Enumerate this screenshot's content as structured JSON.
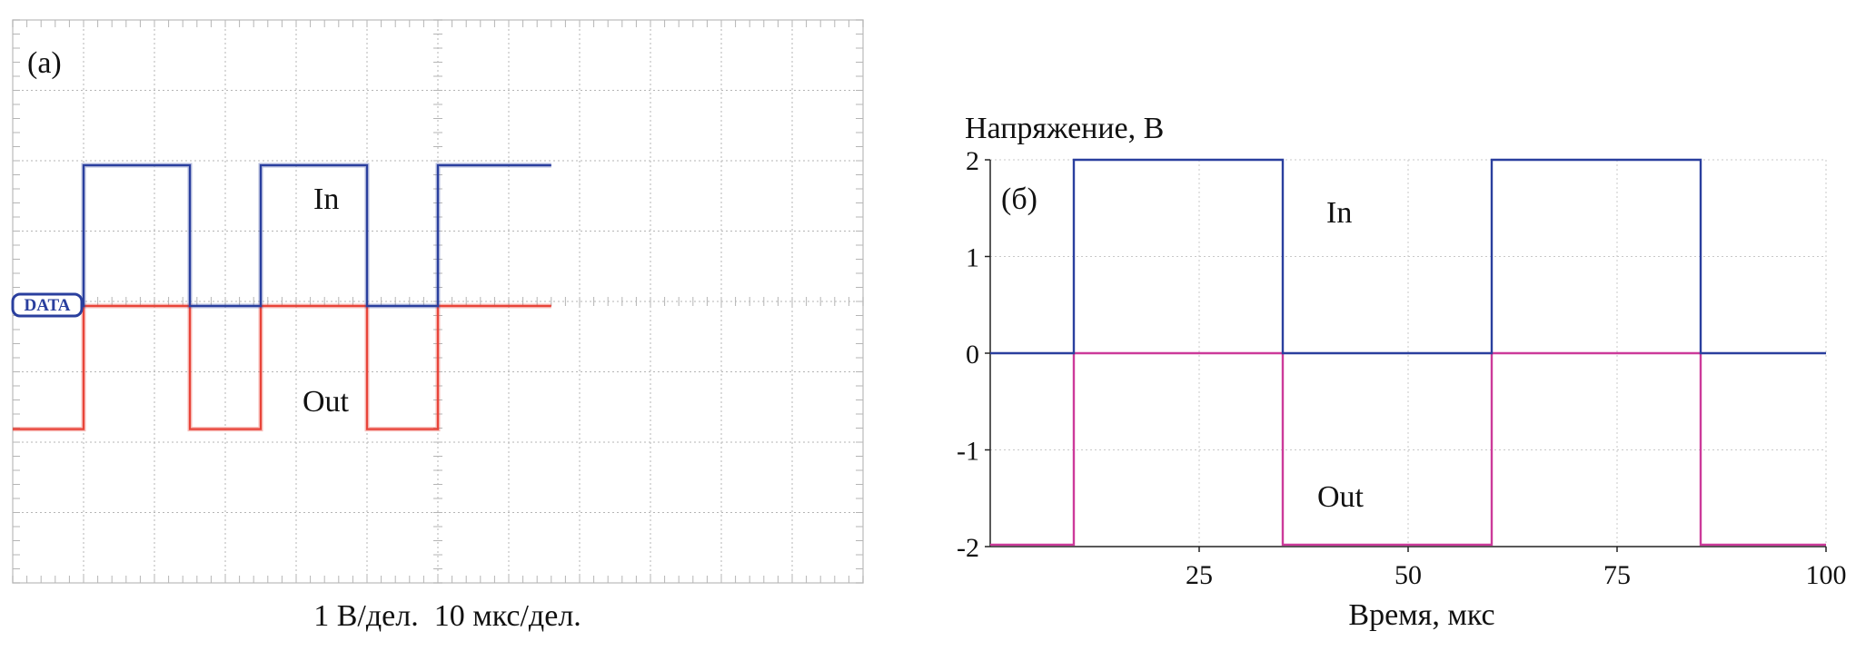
{
  "chart_data": [
    {
      "type": "line",
      "panel_label": "(a)",
      "caption": "1 В/дел.  10 мкс/дел.",
      "marker_label": "DATA",
      "x": [
        0,
        1,
        1,
        2.5,
        2.5,
        3.5,
        3.5,
        5,
        5,
        6,
        6,
        7.6,
        7.6
      ],
      "x_divisions": 12,
      "y_divisions": 8,
      "series": [
        {
          "name": "In",
          "color": "#2a3f9e",
          "y": [
            0,
            0,
            2,
            2,
            0,
            0,
            2,
            2,
            0,
            0,
            2,
            2,
            2
          ]
        },
        {
          "name": "Out",
          "color": "#e8443a",
          "y": [
            -1.75,
            -1.75,
            0,
            0,
            -1.75,
            -1.75,
            0,
            0,
            -1.75,
            -1.75,
            0,
            0,
            0
          ]
        }
      ]
    },
    {
      "type": "line",
      "panel_label": "(б)",
      "ylabel": "Напряжение, В",
      "xlabel": "Время, мкс",
      "xlim": [
        0,
        100
      ],
      "ylim": [
        -2,
        2
      ],
      "xticks": [
        25,
        50,
        75,
        100
      ],
      "yticks": [
        2,
        1,
        0,
        -1,
        -2
      ],
      "series": [
        {
          "name": "In",
          "color": "#2a3f9e",
          "x": [
            0,
            10,
            10,
            35,
            35,
            60,
            60,
            85,
            85,
            100
          ],
          "y": [
            0,
            0,
            2,
            2,
            0,
            0,
            2,
            2,
            0,
            0
          ]
        },
        {
          "name": "Out",
          "color": "#cc3a9a",
          "x": [
            0,
            10,
            10,
            35,
            35,
            60,
            60,
            85,
            85,
            100
          ],
          "y": [
            -1.98,
            -1.98,
            0,
            0,
            -1.98,
            -1.98,
            0,
            0,
            -1.98,
            -1.98
          ]
        }
      ]
    }
  ]
}
